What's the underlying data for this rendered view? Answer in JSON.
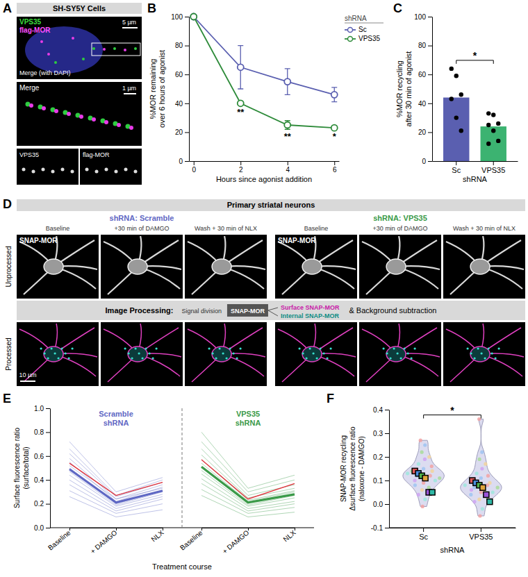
{
  "image_panels": {
    "A": {
      "panel_label": "A",
      "header": "SH-SY5Y Cells",
      "overlay_labels": [
        "VPS35",
        "flag-MOR",
        "Merge (with DAPI)"
      ],
      "scale_bars": [
        "5 µm",
        "1 µm"
      ],
      "zoom_label": "Merge",
      "split_labels": [
        "VPS35",
        "flag-MOR"
      ]
    },
    "D": {
      "panel_label": "D",
      "header": "Primary striatal neurons",
      "groups": [
        {
          "title": "shRNA: Scramble",
          "color": "#5f68c4"
        },
        {
          "title": "shRNA: VPS35",
          "color": "#3a9a48"
        }
      ],
      "columns": [
        "Baseline",
        "+30 min of DAMGO",
        "Wash + 30 min of NLX"
      ],
      "rows": [
        "Unprocessed",
        "Processed"
      ],
      "image_label": "SNAP-MOR",
      "processing": {
        "title": "Image Processing:",
        "step": "Signal division",
        "input": "SNAP-MOR",
        "outputs": [
          "Surface SNAP-MOR",
          "Internal SNAP-MOR"
        ],
        "suffix": "& Background subtraction"
      },
      "scale_bar": "10 µm"
    }
  },
  "chart_data": [
    {
      "panel_label": "B",
      "type": "line",
      "x": [
        0,
        2,
        4,
        6
      ],
      "xlim": [
        -0.2,
        6.2
      ],
      "xticks": [
        0,
        2,
        4,
        6
      ],
      "ylim": [
        0,
        100
      ],
      "yticks": [
        0,
        20,
        40,
        60,
        80,
        100
      ],
      "x_label": "Hours since agonist addition",
      "y_label": [
        "%MOR remaining",
        "over 6 hours of agonist"
      ],
      "legend": "top-right",
      "legend_title": "shRNA",
      "marker": "circle",
      "series": [
        {
          "name": "Sc",
          "color": "#5a5fb0",
          "values": [
            100,
            65,
            55,
            46
          ],
          "errors": [
            0,
            15,
            9,
            5
          ]
        },
        {
          "name": "VPS35",
          "color": "#2e8b3a",
          "values": [
            100,
            40,
            25,
            23
          ],
          "errors": [
            0,
            1,
            3,
            1
          ]
        }
      ],
      "significance": [
        null,
        "**",
        "**",
        "*"
      ]
    },
    {
      "panel_label": "C",
      "type": "bar",
      "categories": [
        "Sc",
        "VPS35"
      ],
      "values": [
        44,
        24
      ],
      "colors": [
        "#5a5fb0",
        "#3cb371"
      ],
      "points": [
        [
          64,
          59,
          46,
          43,
          30,
          21
        ],
        [
          33,
          32,
          26,
          25,
          21,
          14,
          12
        ]
      ],
      "ylim": [
        0,
        100
      ],
      "yticks": [
        0,
        20,
        40,
        60,
        80,
        100
      ],
      "x_label": "shRNA",
      "y_label": [
        "%MOR recycling",
        "after 30 min of agonist"
      ],
      "significance": "*"
    },
    {
      "panel_label": "E",
      "type": "line",
      "categories": [
        "Baseline",
        "+ DAMGO",
        "NLX"
      ],
      "ylim": [
        0,
        1
      ],
      "yticks": [
        {
          "value": 0,
          "label": "0.0"
        },
        0.2,
        0.4,
        0.6,
        0.8,
        {
          "value": 1,
          "label": "1.0"
        }
      ],
      "x_label": "Treatment course",
      "y_label": [
        "Surface fluorescence ratio",
        "(surface/total)"
      ],
      "panels": [
        {
          "title": "Scramble shRNA",
          "color": "#5f68c4",
          "mean": [
            0.49,
            0.21,
            0.31
          ],
          "highlight": [
            0.54,
            0.27,
            0.38
          ],
          "cells": [
            [
              0.72,
              0.3,
              0.42
            ],
            [
              0.66,
              0.27,
              0.4
            ],
            [
              0.62,
              0.26,
              0.38
            ],
            [
              0.58,
              0.24,
              0.36
            ],
            [
              0.55,
              0.22,
              0.34
            ],
            [
              0.52,
              0.24,
              0.33
            ],
            [
              0.5,
              0.2,
              0.31
            ],
            [
              0.47,
              0.19,
              0.3
            ],
            [
              0.44,
              0.18,
              0.28
            ],
            [
              0.4,
              0.16,
              0.26
            ],
            [
              0.36,
              0.14,
              0.24
            ],
            [
              0.31,
              0.12,
              0.2
            ],
            [
              0.26,
              0.09,
              0.15
            ]
          ]
        },
        {
          "title": "VPS35 shRNA",
          "color": "#3a9a48",
          "mean": [
            0.51,
            0.21,
            0.28
          ],
          "highlight": [
            0.57,
            0.24,
            0.37
          ],
          "cells": [
            [
              0.8,
              0.33,
              0.44
            ],
            [
              0.72,
              0.3,
              0.4
            ],
            [
              0.66,
              0.27,
              0.36
            ],
            [
              0.61,
              0.25,
              0.33
            ],
            [
              0.57,
              0.23,
              0.31
            ],
            [
              0.54,
              0.22,
              0.3
            ],
            [
              0.51,
              0.21,
              0.28
            ],
            [
              0.48,
              0.19,
              0.27
            ],
            [
              0.45,
              0.18,
              0.25
            ],
            [
              0.41,
              0.16,
              0.22
            ],
            [
              0.37,
              0.14,
              0.2
            ],
            [
              0.32,
              0.12,
              0.17
            ],
            [
              0.27,
              0.09,
              0.13
            ]
          ]
        }
      ]
    },
    {
      "panel_label": "F",
      "type": "violin",
      "categories": [
        "Sc",
        "VPS35"
      ],
      "cells": [
        [
          0.27,
          0.25,
          0.22,
          0.2,
          0.19,
          0.17,
          0.16,
          0.15,
          0.14,
          0.14,
          0.13,
          0.13,
          0.12,
          0.12,
          0.11,
          0.11,
          0.1,
          0.1,
          0.09,
          0.08,
          0.07,
          0.06,
          0.04,
          0.02,
          -0.01
        ],
        [
          0.36,
          0.22,
          0.19,
          0.17,
          0.15,
          0.13,
          0.12,
          0.11,
          0.1,
          0.09,
          0.09,
          0.08,
          0.08,
          0.07,
          0.07,
          0.06,
          0.06,
          0.05,
          0.05,
          0.04,
          0.03,
          0.02,
          0.01,
          -0.02,
          -0.05
        ]
      ],
      "replicate_means": [
        [
          0.14,
          0.13,
          0.12,
          0.11,
          0.05,
          0.05
        ],
        [
          0.1,
          0.09,
          0.08,
          0.07,
          0.04,
          0.01
        ]
      ],
      "ylim": [
        -0.1,
        0.4
      ],
      "yticks": [
        -0.1,
        {
          "value": 0,
          "label": "0.0"
        },
        0.1,
        0.2,
        0.3,
        0.4
      ],
      "x_label": "shRNA",
      "y_label": [
        "SNAP-MOR recycling",
        "Δsurface fluorescence ratio",
        "(naloxone - DAMGO)"
      ],
      "significance": "*"
    }
  ]
}
